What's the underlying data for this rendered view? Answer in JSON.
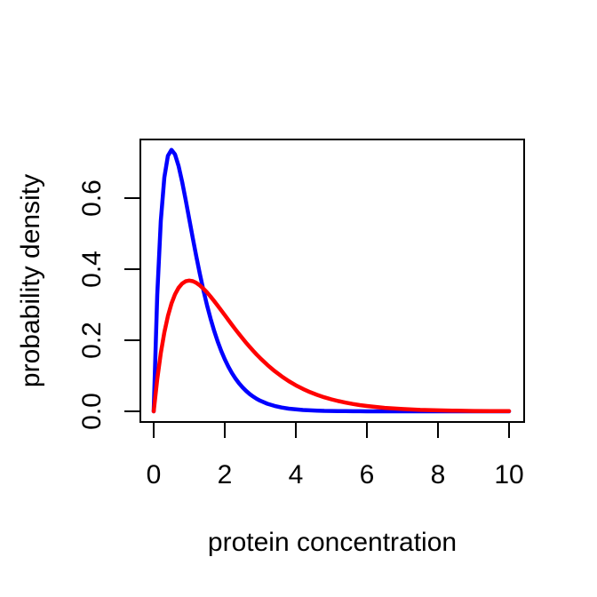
{
  "chart_data": {
    "type": "line",
    "title": "",
    "xlabel": "protein concentration",
    "ylabel": "probability density",
    "xlim": [
      0,
      10
    ],
    "ylim": [
      0,
      0.74
    ],
    "grid": false,
    "legend": "none",
    "x_ticks": {
      "values": [
        0,
        2,
        4,
        6,
        8,
        10
      ],
      "labels": [
        "0",
        "2",
        "4",
        "6",
        "8",
        "10"
      ]
    },
    "y_ticks": {
      "values": [
        0,
        0.2,
        0.4,
        0.6
      ],
      "labels": [
        "0.0",
        "0.2",
        "0.4",
        "0.6"
      ]
    },
    "x": [
      0,
      0.1,
      0.2,
      0.3,
      0.4,
      0.5,
      0.6,
      0.7,
      0.8,
      0.9,
      1.0,
      1.1,
      1.2,
      1.3,
      1.4,
      1.5,
      1.6,
      1.7,
      1.8,
      1.9,
      2.0,
      2.1,
      2.2,
      2.3,
      2.4,
      2.5,
      2.6,
      2.7,
      2.8,
      2.9,
      3.0,
      3.2,
      3.4,
      3.6,
      3.8,
      4.0,
      4.2,
      4.4,
      4.6,
      4.8,
      5.0,
      5.2,
      5.4,
      5.6,
      5.8,
      6.0,
      6.5,
      7.0,
      7.5,
      8.0,
      8.5,
      9.0,
      9.5,
      10.0
    ],
    "series": [
      {
        "name": "blue",
        "color": "#0000FF",
        "peak": {
          "x": 0.5,
          "y": 0.7358
        },
        "values": [
          0,
          0.3275,
          0.5363,
          0.6586,
          0.7189,
          0.7358,
          0.7229,
          0.6905,
          0.6461,
          0.5951,
          0.5413,
          0.4875,
          0.4355,
          0.3862,
          0.3405,
          0.2987,
          0.2609,
          0.2269,
          0.1967,
          0.17,
          0.1465,
          0.126,
          0.108,
          0.0925,
          0.079,
          0.0674,
          0.0574,
          0.0488,
          0.0414,
          0.0351,
          0.0298,
          0.0213,
          0.0152,
          0.0107,
          0.0076,
          0.0054,
          0.0038,
          0.0027,
          0.0019,
          0.0013,
          0.0009,
          0.0006,
          0.0004,
          0.0003,
          0.0002,
          0.0001,
          0.0001,
          0,
          0,
          0,
          0,
          0,
          0,
          0
        ]
      },
      {
        "name": "red",
        "color": "#FF0000",
        "peak": {
          "x": 1.0,
          "y": 0.3679
        },
        "values": [
          0,
          0.0905,
          0.1637,
          0.2222,
          0.2681,
          0.3033,
          0.3293,
          0.3476,
          0.3595,
          0.3659,
          0.3679,
          0.3662,
          0.3614,
          0.3543,
          0.3452,
          0.3347,
          0.323,
          0.3106,
          0.2975,
          0.2842,
          0.2707,
          0.2572,
          0.2438,
          0.2306,
          0.2177,
          0.2052,
          0.1931,
          0.1815,
          0.1703,
          0.1596,
          0.1494,
          0.1304,
          0.1135,
          0.0984,
          0.085,
          0.0733,
          0.063,
          0.054,
          0.0462,
          0.0395,
          0.0337,
          0.0287,
          0.0244,
          0.0207,
          0.0176,
          0.0149,
          0.0098,
          0.0064,
          0.0041,
          0.0027,
          0.0017,
          0.0011,
          0.0007,
          0.0005
        ]
      }
    ],
    "axis_color": "#000000",
    "background_color": "#FFFFFF"
  }
}
